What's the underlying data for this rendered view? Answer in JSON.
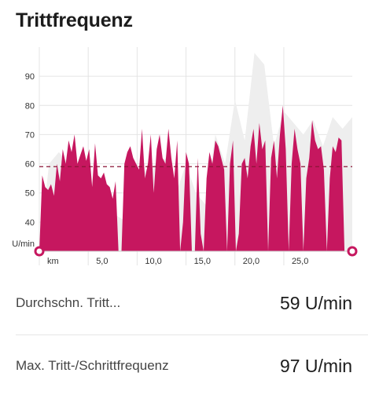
{
  "title": "Trittfrequenz",
  "stats": {
    "avg_label": "Durchschn. Tritt...",
    "avg_value": "59 U/min",
    "max_label": "Max. Tritt-/Schrittfrequenz",
    "max_value": "97 U/min"
  },
  "colors": {
    "series": "#c6175f",
    "background_series": "#eeeeee",
    "average_line": "#8a1436",
    "grid": "#e4e4e4"
  },
  "chart_data": {
    "type": "area",
    "ylabel": "U/min",
    "xlabel": "km",
    "x_unit_tick_label": "km",
    "x_tick_labels": [
      "5,0",
      "10,0",
      "15,0",
      "20,0",
      "25,0"
    ],
    "x_ticks": [
      5,
      10,
      15,
      20,
      25
    ],
    "xlim": [
      0,
      32
    ],
    "y_ticks": [
      40,
      50,
      60,
      70,
      80,
      90
    ],
    "ylim": [
      30,
      100
    ],
    "grid": true,
    "average": 59,
    "series": [
      {
        "name": "",
        "x": [
          0,
          0.3,
          0.6,
          0.9,
          1.2,
          1.5,
          1.8,
          2.1,
          2.4,
          2.7,
          3.0,
          3.3,
          3.6,
          3.9,
          4.2,
          4.5,
          4.8,
          5.1,
          5.4,
          5.7,
          6.0,
          6.3,
          6.6,
          6.9,
          7.2,
          7.5,
          7.8,
          8.1,
          8.4,
          8.7,
          9.0,
          9.3,
          9.6,
          9.9,
          10.2,
          10.5,
          10.8,
          11.1,
          11.4,
          11.7,
          12.0,
          12.3,
          12.6,
          12.9,
          13.2,
          13.5,
          13.8,
          14.1,
          14.4,
          14.7,
          15.0,
          15.3,
          15.6,
          15.9,
          16.2,
          16.5,
          16.8,
          17.1,
          17.4,
          17.7,
          18.0,
          18.3,
          18.6,
          18.9,
          19.2,
          19.5,
          19.8,
          20.1,
          20.4,
          20.7,
          21.0,
          21.3,
          21.6,
          21.9,
          22.2,
          22.5,
          22.8,
          23.1,
          23.4,
          23.7,
          24.0,
          24.3,
          24.6,
          24.9,
          25.2,
          25.5,
          25.8,
          26.1,
          26.4,
          26.7,
          27.0,
          27.3,
          27.6,
          27.9,
          28.2,
          28.5,
          28.8,
          29.1,
          29.4,
          29.7,
          30.0,
          30.3,
          30.6,
          30.9,
          31.2,
          31.5,
          31.8
        ],
        "y": [
          30,
          56,
          52,
          51,
          53,
          49,
          60,
          54,
          65,
          60,
          68,
          64,
          70,
          60,
          63,
          66,
          61,
          65,
          52,
          67,
          56,
          55,
          57,
          53,
          52,
          48,
          54,
          30,
          30,
          60,
          64,
          66,
          62,
          60,
          58,
          72,
          55,
          60,
          70,
          50,
          65,
          70,
          62,
          60,
          72,
          62,
          55,
          68,
          30,
          40,
          64,
          60,
          30,
          30,
          62,
          36,
          30,
          55,
          64,
          60,
          68,
          66,
          62,
          58,
          30,
          60,
          68,
          30,
          36,
          60,
          62,
          55,
          66,
          72,
          60,
          74,
          65,
          68,
          30,
          62,
          68,
          55,
          70,
          80,
          65,
          30,
          60,
          72,
          65,
          60,
          30,
          55,
          62,
          75,
          68,
          65,
          66,
          58,
          30,
          55,
          66,
          64,
          69,
          68,
          30,
          30,
          30
        ]
      },
      {
        "name": "",
        "x": [
          0,
          1,
          2,
          3,
          4,
          5,
          6,
          7,
          8,
          9,
          10,
          11,
          12,
          13,
          14,
          15,
          16,
          17,
          18,
          19,
          20,
          21,
          22,
          23,
          24,
          25,
          26,
          27,
          28,
          29,
          30,
          31,
          32
        ],
        "y": [
          30,
          60,
          64,
          60,
          55,
          48,
          46,
          44,
          42,
          40,
          55,
          58,
          60,
          62,
          50,
          60,
          50,
          46,
          70,
          60,
          82,
          68,
          98,
          94,
          66,
          78,
          74,
          70,
          75,
          66,
          76,
          72,
          76
        ]
      }
    ]
  }
}
